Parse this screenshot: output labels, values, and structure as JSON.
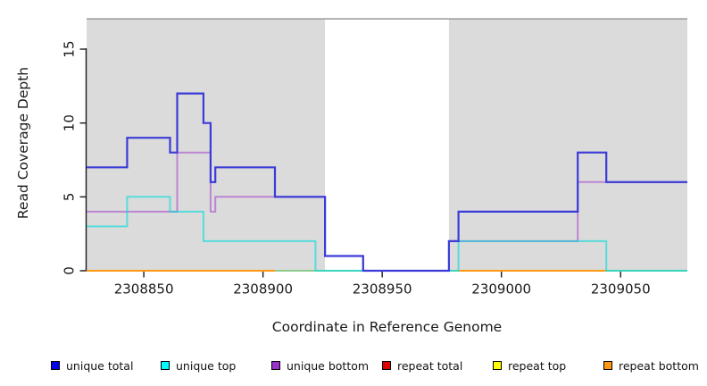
{
  "figure": {
    "background_color": "#ffffff",
    "plot_area_color": "#ffffff",
    "shaded_region_color": "#dbdbdb",
    "region_top_line_color": "#999999",
    "axis_color": "#1a1a1a"
  },
  "chart_data": {
    "type": "line",
    "subtype": "step-coverage",
    "title": "",
    "xlabel": "Coordinate in Reference Genome",
    "ylabel": "Read Coverage Depth",
    "xlim": [
      2308826,
      2309078
    ],
    "ylim": [
      0,
      17.3
    ],
    "grid": false,
    "x_ticks": [
      2308850,
      2308900,
      2308950,
      2309000,
      2309050
    ],
    "x_tick_labels": [
      "2308850",
      "2308900",
      "2308950",
      "2309000",
      "2309050"
    ],
    "y_ticks": [
      0,
      5,
      10,
      15
    ],
    "y_tick_labels": [
      "0",
      "5",
      "10",
      "15"
    ],
    "shaded_regions": [
      {
        "from": 2308826,
        "to": 2308926
      },
      {
        "from": 2308978,
        "to": 2309078
      }
    ],
    "gap_region": {
      "from": 2308926,
      "to": 2308978
    },
    "region_top_value": 17.05,
    "series": [
      {
        "name": "unique total",
        "color": "#3B3BD8",
        "opacity": 1.0,
        "width": 2.2,
        "points": [
          [
            2308826,
            7
          ],
          [
            2308843,
            9
          ],
          [
            2308861,
            8
          ],
          [
            2308864,
            12
          ],
          [
            2308875,
            10
          ],
          [
            2308878,
            6
          ],
          [
            2308880,
            7
          ],
          [
            2308905,
            5
          ],
          [
            2308926,
            1
          ],
          [
            2308942,
            0
          ],
          [
            2308978,
            2
          ],
          [
            2308982,
            4
          ],
          [
            2309032,
            8
          ],
          [
            2309044,
            6
          ]
        ],
        "end": 2309078
      },
      {
        "name": "unique top",
        "color": "#00DADA",
        "opacity": 0.6,
        "width": 2,
        "points": [
          [
            2308826,
            3
          ],
          [
            2308843,
            5
          ],
          [
            2308861,
            4
          ],
          [
            2308875,
            2
          ],
          [
            2308922,
            0
          ],
          [
            2308982,
            2
          ],
          [
            2309044,
            0
          ]
        ],
        "end": 2309078
      },
      {
        "name": "unique bottom",
        "color": "#9932CC",
        "opacity": 0.5,
        "width": 2,
        "points": [
          [
            2308826,
            4
          ],
          [
            2308864,
            8
          ],
          [
            2308878,
            4
          ],
          [
            2308880,
            5
          ],
          [
            2308926,
            1
          ],
          [
            2308942,
            0
          ],
          [
            2308978,
            2
          ],
          [
            2309032,
            6
          ]
        ],
        "end": 2309078
      },
      {
        "name": "repeat total",
        "color": "#DE0000",
        "opacity": 1.0,
        "width": 2,
        "points": [
          [
            2308826,
            0
          ]
        ],
        "end": 2309078
      },
      {
        "name": "repeat top",
        "color": "#FFFF00",
        "opacity": 1.0,
        "width": 2,
        "points": [
          [
            2308826,
            0
          ]
        ],
        "end": 2309078
      },
      {
        "name": "repeat bottom",
        "color": "#FF9912",
        "opacity": 1.0,
        "width": 2,
        "points": [
          [
            2308826,
            0
          ]
        ],
        "end": 2309078
      }
    ],
    "zero_line_overlays": [
      {
        "from": 2308905,
        "to": 2308942,
        "color": "#90CC90"
      },
      {
        "from": 2308978,
        "to": 2308982,
        "color": "#90CC90"
      },
      {
        "from": 2309044,
        "to": 2309078,
        "color": "#90CC90"
      }
    ],
    "legend": [
      {
        "label": "unique total",
        "color": "#0000EE"
      },
      {
        "label": "unique top",
        "color": "#00FFFF"
      },
      {
        "label": "unique bottom",
        "color": "#9932CC"
      },
      {
        "label": "repeat total",
        "color": "#DE0000"
      },
      {
        "label": "repeat top",
        "color": "#FFFF00"
      },
      {
        "label": "repeat bottom",
        "color": "#FF9912"
      }
    ],
    "legend_position": "bottom"
  }
}
